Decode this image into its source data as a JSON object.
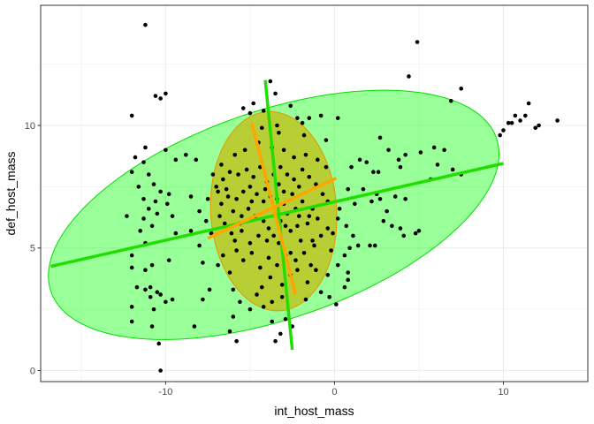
{
  "chart_data": {
    "type": "scatter",
    "xlabel": "int_host_mass",
    "ylabel": "def_host_mass",
    "xlim": [
      -17.4,
      15.0
    ],
    "ylim": [
      -0.45,
      14.9
    ],
    "x_ticks": [
      -10,
      0,
      10
    ],
    "x_tick_labels": [
      "-10",
      "0",
      "10"
    ],
    "y_ticks": [
      0,
      5,
      10
    ],
    "y_tick_labels": [
      "0",
      "5",
      "10"
    ],
    "grid": true,
    "legend": "none",
    "colors": {
      "points": "#000000",
      "outer_ellipse_fill": "#00ff00",
      "outer_ellipse_stroke": "#00dd00",
      "outer_axes": "#22dd00",
      "inner_ellipse_fill": "#c8b400",
      "inner_ellipse_stroke": "#e69500",
      "inner_axes": "#ffa500",
      "panel_border": "#333333",
      "grid": "#ebebeb"
    },
    "ellipses": [
      {
        "name": "outer",
        "center": [
          -3.6,
          6.35
        ],
        "semi_major": 13.6,
        "semi_minor": 4.35,
        "angle_deg": 11.8,
        "major_axis": [
          [
            -16.8,
            4.25
          ],
          [
            10.0,
            8.45
          ]
        ],
        "minor_axis": [
          [
            -4.1,
            11.85
          ],
          [
            -2.5,
            0.85
          ]
        ]
      },
      {
        "name": "inner",
        "center": [
          -3.6,
          6.5
        ],
        "semi_major": 3.7,
        "semi_minor": 4.1,
        "angle_deg": 18,
        "major_axis": [
          [
            -7.5,
            5.4
          ],
          [
            0.1,
            7.85
          ]
        ],
        "minor_axis": [
          [
            -4.9,
            10.1
          ],
          [
            -2.3,
            3.1
          ]
        ]
      }
    ],
    "points": [
      [
        -11.2,
        14.1
      ],
      [
        4.9,
        13.4
      ],
      [
        4.4,
        12.0
      ],
      [
        7.5,
        11.5
      ],
      [
        -3.8,
        11.8
      ],
      [
        -10.6,
        11.2
      ],
      [
        -10.0,
        11.3
      ],
      [
        -3.5,
        11.3
      ],
      [
        -10.3,
        11.1
      ],
      [
        6.9,
        11.0
      ],
      [
        -4.8,
        10.9
      ],
      [
        -2.6,
        10.8
      ],
      [
        -5.4,
        10.7
      ],
      [
        -4.2,
        10.6
      ],
      [
        -12.0,
        10.4
      ],
      [
        -5.0,
        10.5
      ],
      [
        -0.8,
        10.4
      ],
      [
        -1.5,
        10.3
      ],
      [
        -1.9,
        10.1
      ],
      [
        0.2,
        10.3
      ],
      [
        11.5,
        10.9
      ],
      [
        10.7,
        10.4
      ],
      [
        11.3,
        10.4
      ],
      [
        13.2,
        10.2
      ],
      [
        12.1,
        10.0
      ],
      [
        11.9,
        9.9
      ],
      [
        11.0,
        10.2
      ],
      [
        10.5,
        10.1
      ],
      [
        10.3,
        10.1
      ],
      [
        10.0,
        9.8
      ],
      [
        9.8,
        9.6
      ],
      [
        -1.8,
        9.6
      ],
      [
        -3.3,
        9.7
      ],
      [
        -0.5,
        9.4
      ],
      [
        -11.2,
        9.1
      ],
      [
        -10.0,
        9.0
      ],
      [
        -9.4,
        8.6
      ],
      [
        -8.8,
        8.8
      ],
      [
        -11.8,
        8.7
      ],
      [
        -11.3,
        8.5
      ],
      [
        -12.0,
        8.1
      ],
      [
        -11.0,
        8.0
      ],
      [
        -10.7,
        7.6
      ],
      [
        -11.6,
        7.5
      ],
      [
        -10.3,
        7.3
      ],
      [
        -9.8,
        7.2
      ],
      [
        -11.3,
        7.0
      ],
      [
        -10.6,
        6.9
      ],
      [
        -9.9,
        6.8
      ],
      [
        -11.0,
        6.6
      ],
      [
        -10.5,
        6.4
      ],
      [
        -9.6,
        6.3
      ],
      [
        -11.3,
        6.2
      ],
      [
        -12.3,
        6.3
      ],
      [
        -10.8,
        5.9
      ],
      [
        -11.5,
        5.7
      ],
      [
        -9.4,
        5.6
      ],
      [
        -11.2,
        5.2
      ],
      [
        -12.0,
        4.7
      ],
      [
        -10.8,
        4.3
      ],
      [
        -12.0,
        4.2
      ],
      [
        -11.2,
        4.1
      ],
      [
        -9.8,
        4.5
      ],
      [
        -11.7,
        3.4
      ],
      [
        -10.9,
        3.4
      ],
      [
        -10.5,
        3.2
      ],
      [
        -10.9,
        3.0
      ],
      [
        -10.3,
        3.1
      ],
      [
        -11.2,
        3.3
      ],
      [
        -10.0,
        2.8
      ],
      [
        -9.6,
        2.9
      ],
      [
        -12.0,
        2.6
      ],
      [
        -10.7,
        2.5
      ],
      [
        -12.0,
        2.0
      ],
      [
        -10.8,
        1.8
      ],
      [
        -10.4,
        1.1
      ],
      [
        -10.3,
        0.0
      ],
      [
        -8.5,
        5.7
      ],
      [
        -8.0,
        5.1
      ],
      [
        -7.8,
        4.4
      ],
      [
        -7.4,
        3.3
      ],
      [
        -7.8,
        2.9
      ],
      [
        -8.3,
        1.8
      ],
      [
        -6.6,
        4.7
      ],
      [
        -6.2,
        4.0
      ],
      [
        -6.0,
        3.3
      ],
      [
        -5.6,
        2.8
      ],
      [
        -6.0,
        2.2
      ],
      [
        -6.2,
        1.6
      ],
      [
        -5.8,
        1.2
      ],
      [
        -5.0,
        2.5
      ],
      [
        -4.6,
        3.1
      ],
      [
        -4.2,
        2.6
      ],
      [
        -3.7,
        2.8
      ],
      [
        -3.1,
        3.0
      ],
      [
        -3.7,
        2.0
      ],
      [
        -3.2,
        1.5
      ],
      [
        -2.9,
        2.1
      ],
      [
        -2.5,
        1.8
      ],
      [
        -3.5,
        1.2
      ],
      [
        -0.8,
        3.2
      ],
      [
        -0.3,
        3.0
      ],
      [
        0.1,
        2.7
      ],
      [
        0.8,
        4.0
      ],
      [
        0.6,
        4.7
      ],
      [
        0.9,
        5.0
      ],
      [
        0.8,
        3.7
      ],
      [
        0.6,
        3.4
      ],
      [
        0.2,
        4.3
      ],
      [
        -1.4,
        4.3
      ],
      [
        -1.6,
        3.6
      ],
      [
        -1.1,
        4.1
      ],
      [
        1.1,
        5.5
      ],
      [
        1.4,
        5.1
      ],
      [
        2.1,
        5.1
      ],
      [
        2.4,
        5.1
      ],
      [
        3.4,
        5.9
      ],
      [
        3.9,
        5.8
      ],
      [
        4.1,
        5.5
      ],
      [
        4.8,
        5.6
      ],
      [
        5.0,
        5.7
      ],
      [
        2.9,
        6.1
      ],
      [
        3.1,
        6.5
      ],
      [
        2.7,
        7.0
      ],
      [
        2.5,
        7.2
      ],
      [
        2.2,
        6.9
      ],
      [
        1.7,
        7.4
      ],
      [
        3.6,
        7.1
      ],
      [
        4.2,
        7.0
      ],
      [
        3.9,
        8.3
      ],
      [
        4.2,
        8.8
      ],
      [
        5.1,
        8.9
      ],
      [
        5.9,
        9.1
      ],
      [
        6.5,
        9.0
      ],
      [
        5.7,
        7.8
      ],
      [
        6.1,
        8.4
      ],
      [
        7.0,
        8.2
      ],
      [
        7.5,
        8.0
      ],
      [
        3.8,
        8.6
      ],
      [
        3.2,
        9.0
      ],
      [
        2.7,
        9.5
      ],
      [
        2.3,
        8.1
      ],
      [
        1.9,
        8.5
      ],
      [
        1.5,
        8.6
      ],
      [
        2.6,
        8.1
      ],
      [
        1.0,
        8.3
      ],
      [
        0.8,
        7.4
      ],
      [
        1.2,
        6.8
      ],
      [
        0.3,
        6.6
      ],
      [
        0.2,
        6.2
      ],
      [
        0.7,
        5.9
      ],
      [
        -0.4,
        5.8
      ],
      [
        -0.8,
        5.5
      ],
      [
        -1.3,
        5.3
      ],
      [
        -1.0,
        6.2
      ],
      [
        -1.6,
        6.0
      ],
      [
        -2.1,
        6.3
      ],
      [
        -2.2,
        5.9
      ],
      [
        -2.6,
        5.7
      ],
      [
        -2.9,
        5.9
      ],
      [
        -3.2,
        6.1
      ],
      [
        -2.8,
        6.4
      ],
      [
        -2.3,
        6.6
      ],
      [
        -1.9,
        6.9
      ],
      [
        -2.5,
        7.2
      ],
      [
        -3.0,
        7.3
      ],
      [
        -3.4,
        7.0
      ],
      [
        -3.8,
        7.1
      ],
      [
        -4.2,
        6.9
      ],
      [
        -4.6,
        7.2
      ],
      [
        -5.0,
        7.5
      ],
      [
        -5.4,
        7.3
      ],
      [
        -5.8,
        7.0
      ],
      [
        -6.3,
        7.1
      ],
      [
        -6.7,
        6.8
      ],
      [
        -6.0,
        6.5
      ],
      [
        -5.5,
        6.3
      ],
      [
        -5.1,
        6.6
      ],
      [
        -4.7,
        6.3
      ],
      [
        -4.2,
        6.1
      ],
      [
        -3.9,
        5.8
      ],
      [
        -3.6,
        5.5
      ],
      [
        -4.0,
        5.3
      ],
      [
        -4.5,
        5.5
      ],
      [
        -5.0,
        5.2
      ],
      [
        -5.5,
        5.7
      ],
      [
        -6.1,
        5.6
      ],
      [
        -6.5,
        6.0
      ],
      [
        -6.8,
        6.3
      ],
      [
        -7.0,
        7.5
      ],
      [
        -6.6,
        7.8
      ],
      [
        -6.2,
        8.1
      ],
      [
        -5.7,
        8.0
      ],
      [
        -5.2,
        8.2
      ],
      [
        -4.8,
        7.9
      ],
      [
        -4.4,
        8.3
      ],
      [
        -4.0,
        7.7
      ],
      [
        -3.6,
        8.0
      ],
      [
        -3.2,
        8.3
      ],
      [
        -2.8,
        8.0
      ],
      [
        -2.4,
        7.8
      ],
      [
        -1.9,
        8.2
      ],
      [
        -1.5,
        7.9
      ],
      [
        -1.1,
        7.6
      ],
      [
        -0.7,
        7.2
      ],
      [
        -0.4,
        6.9
      ],
      [
        -1.3,
        6.6
      ],
      [
        -1.8,
        4.8
      ],
      [
        -2.3,
        4.5
      ],
      [
        -2.9,
        4.7
      ],
      [
        -3.4,
        4.3
      ],
      [
        -3.9,
        4.6
      ],
      [
        -4.4,
        4.2
      ],
      [
        -4.9,
        4.8
      ],
      [
        -5.4,
        4.5
      ],
      [
        -5.8,
        4.9
      ],
      [
        -3.8,
        3.8
      ],
      [
        -4.3,
        3.4
      ],
      [
        -2.6,
        3.9
      ],
      [
        -2.2,
        4.1
      ],
      [
        -3.1,
        3.5
      ],
      [
        -6.9,
        4.3
      ],
      [
        -6.9,
        7.3
      ],
      [
        -7.2,
        8.0
      ],
      [
        -6.7,
        8.4
      ],
      [
        -5.9,
        8.8
      ],
      [
        -5.3,
        9.0
      ],
      [
        -4.5,
        9.3
      ],
      [
        -3.7,
        9.1
      ],
      [
        -3.0,
        9.0
      ],
      [
        -2.4,
        8.7
      ],
      [
        -1.7,
        8.8
      ],
      [
        -1.0,
        8.6
      ],
      [
        -0.5,
        8.3
      ],
      [
        -3.4,
        10.0
      ],
      [
        -2.2,
        10.3
      ],
      [
        -4.3,
        9.9
      ],
      [
        -8.2,
        8.6
      ],
      [
        -8.5,
        7.1
      ],
      [
        -8.0,
        6.5
      ],
      [
        -7.5,
        7.0
      ],
      [
        -0.2,
        4.9
      ],
      [
        -1.2,
        5.1
      ],
      [
        -2.0,
        5.3
      ],
      [
        -3.3,
        5.2
      ],
      [
        -1.7,
        2.9
      ],
      [
        -0.4,
        3.9
      ],
      [
        -0.1,
        5.6
      ],
      [
        -2.6,
        4.8
      ],
      [
        -7.3,
        5.6
      ],
      [
        -7.6,
        6.1
      ],
      [
        -2.1,
        7.5
      ],
      [
        -3.3,
        7.6
      ],
      [
        -4.9,
        6.9
      ],
      [
        -5.6,
        6.0
      ],
      [
        -3.0,
        6.8
      ],
      [
        -4.1,
        7.4
      ],
      [
        -6.4,
        7.4
      ],
      [
        -5.9,
        5.3
      ],
      [
        -1.5,
        6.3
      ]
    ]
  }
}
